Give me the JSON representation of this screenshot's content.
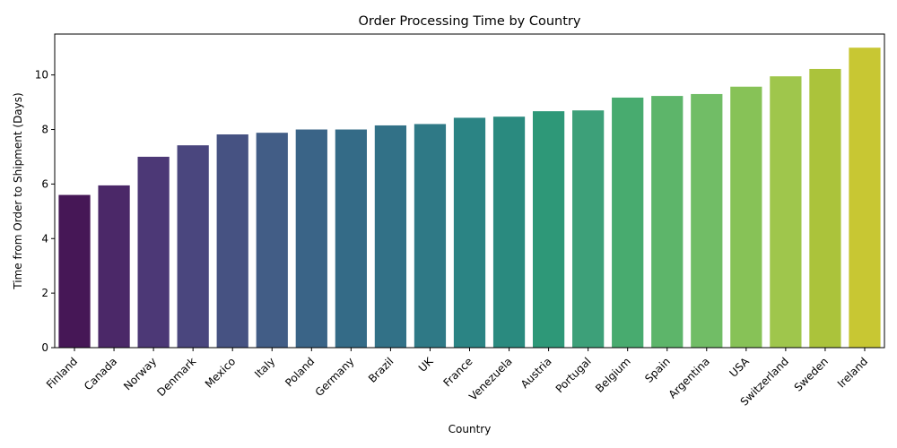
{
  "chart_data": {
    "type": "bar",
    "title": "Order Processing Time by Country",
    "xlabel": "Country",
    "ylabel": "Time from Order to Shipment (Days)",
    "ylim": [
      0,
      11.5
    ],
    "yticks": [
      0,
      2,
      4,
      6,
      8,
      10
    ],
    "grid": false,
    "categories": [
      "Finland",
      "Canada",
      "Norway",
      "Denmark",
      "Mexico",
      "Italy",
      "Poland",
      "Germany",
      "Brazil",
      "UK",
      "France",
      "Venezuela",
      "Austria",
      "Portugal",
      "Belgium",
      "Spain",
      "Argentina",
      "USA",
      "Switzerland",
      "Sweden",
      "Ireland"
    ],
    "values": [
      5.6,
      5.95,
      7.0,
      7.42,
      7.82,
      7.88,
      8.0,
      8.0,
      8.15,
      8.2,
      8.43,
      8.47,
      8.67,
      8.7,
      9.17,
      9.23,
      9.3,
      9.57,
      9.95,
      10.22,
      11.0
    ],
    "colors": [
      "#461756",
      "#4b2868",
      "#4c3876",
      "#4a467e",
      "#465282",
      "#425d86",
      "#3a6487",
      "#346b87",
      "#327187",
      "#2f7986",
      "#2b8484",
      "#2a8a7f",
      "#2e9878",
      "#3da079",
      "#48ab6f",
      "#5db56a",
      "#71bd66",
      "#87c257",
      "#9fc64c",
      "#abc33b",
      "#c8c733"
    ]
  }
}
